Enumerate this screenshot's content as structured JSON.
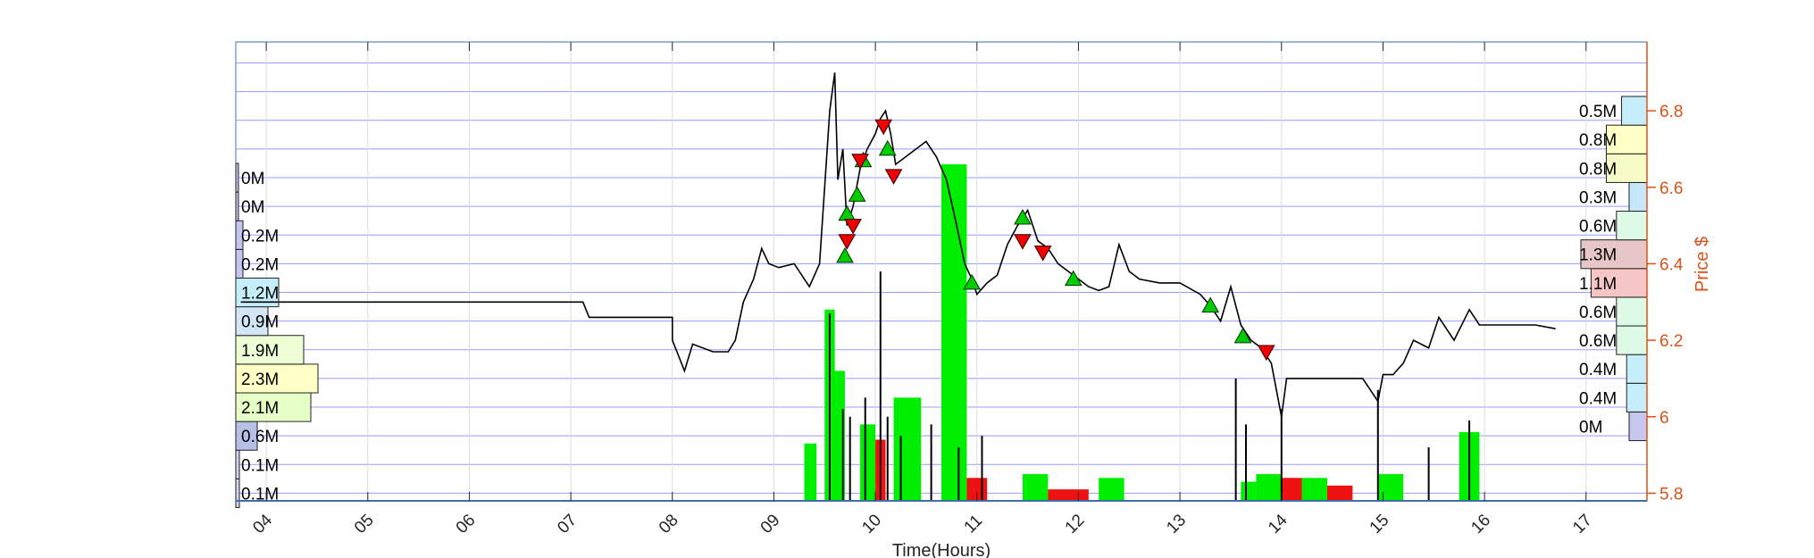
{
  "chart_data": {
    "type": "line",
    "xlabel": "Time(Hours)",
    "ylabel": "Price $",
    "xlim": [
      3.7,
      17.6
    ],
    "ylim": [
      5.78,
      6.98
    ],
    "grid": true,
    "x_ticks": [
      "04",
      "05",
      "06",
      "07",
      "08",
      "09",
      "10",
      "11",
      "12",
      "13",
      "14",
      "15",
      "16",
      "17"
    ],
    "y_ticks": [
      "5.8",
      "6",
      "6.2",
      "6.4",
      "6.6",
      "6.8"
    ],
    "colors": {
      "price_line": "#000000",
      "buy_volume": "#00ee00",
      "sell_volume": "#ee1111",
      "grid": "#9999ff",
      "right_axis": "#d95319",
      "buy_marker": "#00cc00",
      "sell_marker": "#ee0000"
    },
    "price_series": [
      [
        3.75,
        6.3
      ],
      [
        4.0,
        6.3
      ],
      [
        7.12,
        6.3
      ],
      [
        7.18,
        6.26
      ],
      [
        8.0,
        6.26
      ],
      [
        8.0,
        6.2
      ],
      [
        8.12,
        6.12
      ],
      [
        8.2,
        6.19
      ],
      [
        8.4,
        6.17
      ],
      [
        8.55,
        6.17
      ],
      [
        8.62,
        6.2
      ],
      [
        8.7,
        6.3
      ],
      [
        8.8,
        6.36
      ],
      [
        8.88,
        6.44
      ],
      [
        8.95,
        6.4
      ],
      [
        9.05,
        6.39
      ],
      [
        9.2,
        6.4
      ],
      [
        9.35,
        6.34
      ],
      [
        9.45,
        6.4
      ],
      [
        9.5,
        6.6
      ],
      [
        9.55,
        6.8
      ],
      [
        9.6,
        6.9
      ],
      [
        9.63,
        6.62
      ],
      [
        9.68,
        6.7
      ],
      [
        9.72,
        6.5
      ],
      [
        9.78,
        6.55
      ],
      [
        9.85,
        6.65
      ],
      [
        9.92,
        6.7
      ],
      [
        10.0,
        6.74
      ],
      [
        10.05,
        6.78
      ],
      [
        10.1,
        6.8
      ],
      [
        10.15,
        6.74
      ],
      [
        10.2,
        6.66
      ],
      [
        10.3,
        6.68
      ],
      [
        10.4,
        6.7
      ],
      [
        10.5,
        6.72
      ],
      [
        10.6,
        6.68
      ],
      [
        10.7,
        6.62
      ],
      [
        10.8,
        6.5
      ],
      [
        10.88,
        6.4
      ],
      [
        10.95,
        6.36
      ],
      [
        11.0,
        6.32
      ],
      [
        11.1,
        6.35
      ],
      [
        11.2,
        6.37
      ],
      [
        11.3,
        6.45
      ],
      [
        11.4,
        6.5
      ],
      [
        11.5,
        6.54
      ],
      [
        11.6,
        6.46
      ],
      [
        11.7,
        6.44
      ],
      [
        11.8,
        6.4
      ],
      [
        11.9,
        6.38
      ],
      [
        12.0,
        6.36
      ],
      [
        12.1,
        6.34
      ],
      [
        12.2,
        6.33
      ],
      [
        12.3,
        6.34
      ],
      [
        12.4,
        6.45
      ],
      [
        12.5,
        6.38
      ],
      [
        12.6,
        6.36
      ],
      [
        12.8,
        6.35
      ],
      [
        13.0,
        6.35
      ],
      [
        13.2,
        6.32
      ],
      [
        13.3,
        6.29
      ],
      [
        13.4,
        6.25
      ],
      [
        13.5,
        6.34
      ],
      [
        13.6,
        6.24
      ],
      [
        13.7,
        6.2
      ],
      [
        13.8,
        6.18
      ],
      [
        13.9,
        6.14
      ],
      [
        14.0,
        6.0
      ],
      [
        14.05,
        6.1
      ],
      [
        14.2,
        6.1
      ],
      [
        14.4,
        6.1
      ],
      [
        14.6,
        6.1
      ],
      [
        14.8,
        6.1
      ],
      [
        14.95,
        6.04
      ],
      [
        15.0,
        6.11
      ],
      [
        15.1,
        6.11
      ],
      [
        15.2,
        6.14
      ],
      [
        15.3,
        6.2
      ],
      [
        15.45,
        6.18
      ],
      [
        15.55,
        6.26
      ],
      [
        15.7,
        6.2
      ],
      [
        15.85,
        6.28
      ],
      [
        15.95,
        6.24
      ],
      [
        16.2,
        6.24
      ],
      [
        16.5,
        6.24
      ],
      [
        16.7,
        6.23
      ]
    ],
    "buy_markers": [
      [
        9.7,
        6.42
      ],
      [
        9.72,
        6.53
      ],
      [
        9.82,
        6.58
      ],
      [
        9.88,
        6.67
      ],
      [
        10.12,
        6.7
      ],
      [
        10.95,
        6.35
      ],
      [
        11.45,
        6.52
      ],
      [
        11.95,
        6.36
      ],
      [
        13.3,
        6.29
      ],
      [
        13.62,
        6.21
      ]
    ],
    "sell_markers": [
      [
        9.72,
        6.46
      ],
      [
        9.78,
        6.5
      ],
      [
        9.85,
        6.67
      ],
      [
        10.08,
        6.76
      ],
      [
        10.18,
        6.63
      ],
      [
        11.45,
        6.46
      ],
      [
        11.65,
        6.43
      ],
      [
        13.85,
        6.17
      ]
    ],
    "volume_bars": [
      {
        "x0": 9.3,
        "x1": 9.42,
        "y": 5.93,
        "side": "buy"
      },
      {
        "x0": 9.5,
        "x1": 9.6,
        "y": 6.28,
        "side": "buy"
      },
      {
        "x0": 9.58,
        "x1": 9.7,
        "y": 6.12,
        "side": "buy"
      },
      {
        "x0": 9.85,
        "x1": 10.0,
        "y": 5.98,
        "side": "buy"
      },
      {
        "x0": 10.0,
        "x1": 10.1,
        "y": 5.94,
        "side": "sell"
      },
      {
        "x0": 10.18,
        "x1": 10.45,
        "y": 6.05,
        "side": "buy"
      },
      {
        "x0": 10.65,
        "x1": 10.9,
        "y": 6.66,
        "side": "buy"
      },
      {
        "x0": 10.9,
        "x1": 11.1,
        "y": 5.84,
        "side": "sell"
      },
      {
        "x0": 11.45,
        "x1": 11.7,
        "y": 5.85,
        "side": "buy"
      },
      {
        "x0": 11.7,
        "x1": 12.1,
        "y": 5.81,
        "side": "sell"
      },
      {
        "x0": 12.2,
        "x1": 12.45,
        "y": 5.84,
        "side": "buy"
      },
      {
        "x0": 13.6,
        "x1": 13.75,
        "y": 5.83,
        "side": "buy"
      },
      {
        "x0": 13.75,
        "x1": 14.0,
        "y": 5.85,
        "side": "buy"
      },
      {
        "x0": 14.0,
        "x1": 14.2,
        "y": 5.84,
        "side": "sell"
      },
      {
        "x0": 14.2,
        "x1": 14.45,
        "y": 5.84,
        "side": "buy"
      },
      {
        "x0": 14.45,
        "x1": 14.7,
        "y": 5.82,
        "side": "sell"
      },
      {
        "x0": 14.95,
        "x1": 15.2,
        "y": 5.85,
        "side": "buy"
      },
      {
        "x0": 15.75,
        "x1": 15.95,
        "y": 5.96,
        "side": "buy"
      }
    ],
    "volume_spikes": [
      [
        9.55,
        6.27
      ],
      [
        9.68,
        6.02
      ],
      [
        9.75,
        6.0
      ],
      [
        9.9,
        6.05
      ],
      [
        10.05,
        6.38
      ],
      [
        10.12,
        6.0
      ],
      [
        10.25,
        5.95
      ],
      [
        10.55,
        5.98
      ],
      [
        10.82,
        5.92
      ],
      [
        11.05,
        5.95
      ],
      [
        13.55,
        6.1
      ],
      [
        13.65,
        5.98
      ],
      [
        14.0,
        6.02
      ],
      [
        14.95,
        6.07
      ],
      [
        15.45,
        5.92
      ],
      [
        15.85,
        5.99
      ]
    ],
    "left_volume_profile": [
      {
        "label": "0.1M",
        "price": 5.8,
        "value": 0.1,
        "color": "#cfd6ee"
      },
      {
        "label": "0.1M",
        "price": 5.875,
        "value": 0.1,
        "color": "#cfd6ee"
      },
      {
        "label": "0.6M",
        "price": 5.95,
        "value": 0.6,
        "color": "#b6bfe6"
      },
      {
        "label": "2.1M",
        "price": 6.025,
        "value": 2.1,
        "color": "#e6ffc6"
      },
      {
        "label": "2.3M",
        "price": 6.1,
        "value": 2.3,
        "color": "#ffffc6"
      },
      {
        "label": "1.9M",
        "price": 6.175,
        "value": 1.9,
        "color": "#eeffd6"
      },
      {
        "label": "0.9M",
        "price": 6.25,
        "value": 0.9,
        "color": "#d2e6f6"
      },
      {
        "label": "1.2M",
        "price": 6.325,
        "value": 1.2,
        "color": "#c6eefa"
      },
      {
        "label": "0.2M",
        "price": 6.4,
        "value": 0.2,
        "color": "#c2c6ee"
      },
      {
        "label": "0.2M",
        "price": 6.475,
        "value": 0.2,
        "color": "#c2c6ee"
      },
      {
        "label": "0M",
        "price": 6.55,
        "value": 0.0,
        "color": "#c2c6ee"
      },
      {
        "label": "0M",
        "price": 6.625,
        "value": 0.0,
        "color": "#c2c6ee"
      }
    ],
    "right_volume_profile": [
      {
        "label": "0M",
        "price": 5.975,
        "value": 0.0,
        "color": "#c6c6ee"
      },
      {
        "label": "0.4M",
        "price": 6.05,
        "value": 0.4,
        "color": "#c6eefa"
      },
      {
        "label": "0.4M",
        "price": 6.125,
        "value": 0.4,
        "color": "#c6eefa"
      },
      {
        "label": "0.6M",
        "price": 6.2,
        "value": 0.6,
        "color": "#dcfae6"
      },
      {
        "label": "0.6M",
        "price": 6.275,
        "value": 0.6,
        "color": "#dcfae6"
      },
      {
        "label": "1.1M",
        "price": 6.35,
        "value": 1.1,
        "color": "#f6c6c6"
      },
      {
        "label": "1.3M",
        "price": 6.425,
        "value": 1.3,
        "color": "#e6c6c6"
      },
      {
        "label": "0.6M",
        "price": 6.5,
        "value": 0.6,
        "color": "#dcfae6"
      },
      {
        "label": "0.3M",
        "price": 6.575,
        "value": 0.3,
        "color": "#c6e6fa"
      },
      {
        "label": "0.8M",
        "price": 6.65,
        "value": 0.8,
        "color": "#f6fac6"
      },
      {
        "label": "0.8M",
        "price": 6.725,
        "value": 0.8,
        "color": "#ffffc6"
      },
      {
        "label": "0.5M",
        "price": 6.8,
        "value": 0.5,
        "color": "#c6eefa"
      }
    ]
  }
}
